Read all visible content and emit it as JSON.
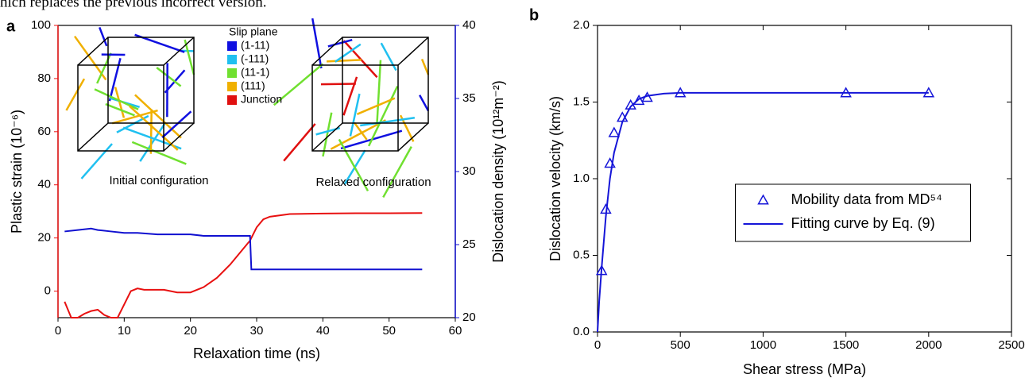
{
  "caption_fragment": "hich replaces the previous incorrect version.",
  "chart_data": [
    {
      "type": "line",
      "panel_label": "a",
      "x_label": "Relaxation time (ns)",
      "y_label": "Plastic strain (10⁻⁶)",
      "y2_label": "Dislocation density (10¹²m⁻²)",
      "xlim": [
        0,
        60
      ],
      "xticks": [
        0,
        10,
        20,
        30,
        40,
        50,
        60
      ],
      "ylim": [
        -10,
        100
      ],
      "yticks": [
        0,
        20,
        40,
        60,
        80,
        100
      ],
      "y_color": "#e81010",
      "y2lim": [
        20,
        40
      ],
      "y2ticks": [
        20,
        25,
        30,
        35,
        40
      ],
      "y2_color": "#1010d0",
      "series": [
        {
          "name": "Plastic strain",
          "color": "#e81010",
          "axis": "y",
          "x": [
            1,
            2,
            3,
            4,
            5,
            6,
            7,
            8,
            9,
            10,
            11,
            12,
            13,
            14,
            16,
            18,
            20,
            22,
            24,
            26,
            28,
            29,
            30,
            31,
            32,
            35,
            40,
            45,
            50,
            55
          ],
          "values": [
            -4,
            -10,
            -10,
            -8.5,
            -7.5,
            -7,
            -9,
            -10,
            -10,
            -5,
            0,
            1,
            0.5,
            0.5,
            0.5,
            -0.5,
            -0.5,
            1.5,
            5,
            10,
            16,
            19,
            24,
            27,
            28,
            29,
            29.2,
            29.3,
            29.3,
            29.4
          ]
        },
        {
          "name": "Dislocation density",
          "color": "#1010d0",
          "axis": "y2",
          "x": [
            1,
            3,
            5,
            6,
            8,
            10,
            12,
            15,
            20,
            22,
            25,
            29,
            29.2,
            35,
            45,
            55
          ],
          "values": [
            25.9,
            26,
            26.1,
            26,
            25.9,
            25.8,
            25.8,
            25.7,
            25.7,
            25.6,
            25.6,
            25.6,
            23.3,
            23.3,
            23.3,
            23.3
          ]
        }
      ],
      "inset_legend": {
        "title": "Slip plane",
        "items": [
          {
            "label": "(1-11)",
            "color": "#1010e0"
          },
          {
            "label": "(-111)",
            "color": "#20c0f0"
          },
          {
            "label": "(11-1)",
            "color": "#70e030"
          },
          {
            "label": "(111)",
            "color": "#f0b000"
          },
          {
            "label": "Junction",
            "color": "#e01010"
          }
        ]
      },
      "inset_captions": [
        "Initial configuration",
        "Relaxed configuration"
      ]
    },
    {
      "type": "scatter",
      "panel_label": "b",
      "x_label": "Shear stress (MPa)",
      "y_label": "Dislocation velocity (km/s)",
      "xlim": [
        0,
        2500
      ],
      "xticks": [
        0,
        500,
        1000,
        1500,
        2000,
        2500
      ],
      "ylim": [
        0,
        2.0
      ],
      "yticks": [
        {
          "value": 0,
          "label": "0.0"
        },
        0.5,
        {
          "value": 1,
          "label": "1.0"
        },
        1.5,
        {
          "value": 2,
          "label": "2.0"
        }
      ],
      "legend": "center",
      "series": [
        {
          "name": "Mobility data from MD⁵⁴",
          "color": "#1515d8",
          "marker": "triangle",
          "x": [
            25,
            50,
            75,
            100,
            150,
            200,
            250,
            300,
            500,
            1500,
            2000
          ],
          "values": [
            0.4,
            0.8,
            1.1,
            1.3,
            1.4,
            1.48,
            1.51,
            1.53,
            1.56,
            1.56,
            1.56
          ]
        },
        {
          "name": "Fitting curve by Eq. (9)",
          "color": "#1515d8",
          "marker": "line",
          "x": [
            0,
            10,
            25,
            50,
            75,
            100,
            150,
            200,
            250,
            300,
            400,
            500,
            750,
            1000,
            1500,
            2000
          ],
          "values": [
            0,
            0.2,
            0.42,
            0.75,
            1.0,
            1.17,
            1.37,
            1.47,
            1.52,
            1.54,
            1.555,
            1.56,
            1.56,
            1.56,
            1.56,
            1.56
          ]
        }
      ]
    }
  ]
}
